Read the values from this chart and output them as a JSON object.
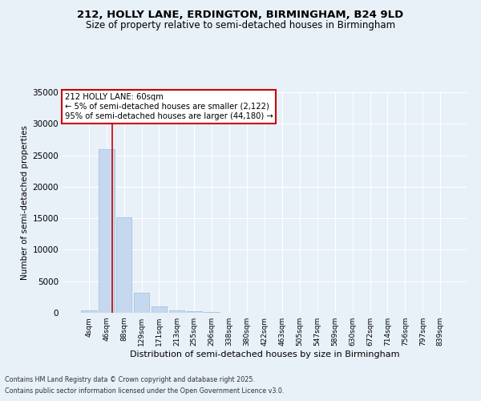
{
  "title1": "212, HOLLY LANE, ERDINGTON, BIRMINGHAM, B24 9LD",
  "title2": "Size of property relative to semi-detached houses in Birmingham",
  "xlabel": "Distribution of semi-detached houses by size in Birmingham",
  "ylabel": "Number of semi-detached properties",
  "categories": [
    "4sqm",
    "46sqm",
    "88sqm",
    "129sqm",
    "171sqm",
    "213sqm",
    "255sqm",
    "296sqm",
    "338sqm",
    "380sqm",
    "422sqm",
    "463sqm",
    "505sqm",
    "547sqm",
    "589sqm",
    "630sqm",
    "672sqm",
    "714sqm",
    "756sqm",
    "797sqm",
    "839sqm"
  ],
  "values": [
    400,
    26000,
    15100,
    3200,
    1000,
    400,
    200,
    80,
    30,
    10,
    5,
    2,
    1,
    0,
    0,
    0,
    0,
    0,
    0,
    0,
    0
  ],
  "bar_color": "#c5d8f0",
  "bar_edge_color": "#a0bcd8",
  "background_color": "#e8f0f8",
  "grid_color": "#ffffff",
  "red_line_x": 1.35,
  "annotation_title": "212 HOLLY LANE: 60sqm",
  "annotation_line1": "← 5% of semi-detached houses are smaller (2,122)",
  "annotation_line2": "95% of semi-detached houses are larger (44,180) →",
  "annotation_box_color": "#ffffff",
  "annotation_border_color": "#cc0000",
  "ylim": [
    0,
    35000
  ],
  "yticks": [
    0,
    5000,
    10000,
    15000,
    20000,
    25000,
    30000,
    35000
  ],
  "footer1": "Contains HM Land Registry data © Crown copyright and database right 2025.",
  "footer2": "Contains public sector information licensed under the Open Government Licence v3.0."
}
